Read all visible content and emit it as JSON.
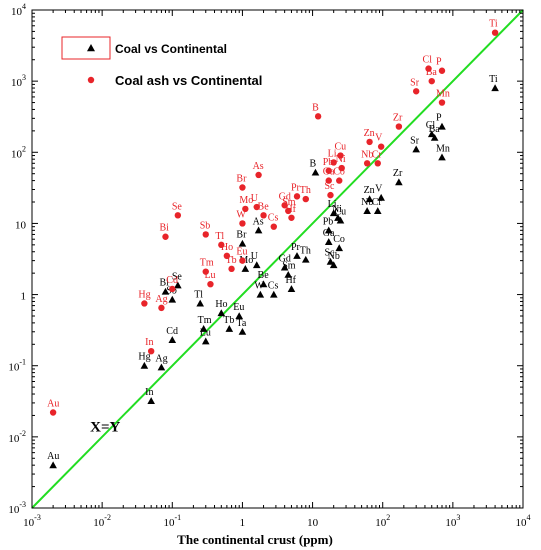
{
  "chart_data": {
    "type": "scatter",
    "xlabel": "The continental crust (ppm)",
    "ylabel": "",
    "x_scale": "log",
    "y_scale": "log",
    "xlim": [
      0.001,
      10000
    ],
    "ylim": [
      0.001,
      10000
    ],
    "x_ticks": [
      {
        "base": "10",
        "exp": "-3",
        "value": 0.001
      },
      {
        "base": "10",
        "exp": "-2",
        "value": 0.01
      },
      {
        "base": "10",
        "exp": "-1",
        "value": 0.1
      },
      {
        "base": "1",
        "exp": "",
        "value": 1
      },
      {
        "base": "10",
        "exp": "",
        "value": 10
      },
      {
        "base": "10",
        "exp": "2",
        "value": 100
      },
      {
        "base": "10",
        "exp": "3",
        "value": 1000
      },
      {
        "base": "10",
        "exp": "4",
        "value": 10000
      }
    ],
    "y_ticks": [
      {
        "base": "10",
        "exp": "-3",
        "value": 0.001
      },
      {
        "base": "10",
        "exp": "-2",
        "value": 0.01
      },
      {
        "base": "10",
        "exp": "-1",
        "value": 0.1
      },
      {
        "base": "1",
        "exp": "",
        "value": 1
      },
      {
        "base": "10",
        "exp": "",
        "value": 10
      },
      {
        "base": "10",
        "exp": "2",
        "value": 100
      },
      {
        "base": "10",
        "exp": "3",
        "value": 1000
      },
      {
        "base": "10",
        "exp": "4",
        "value": 10000
      }
    ],
    "grid": false,
    "legend_position": "top-left",
    "reference_line": {
      "label": "X=Y",
      "color": "#22dd22",
      "from": [
        0.001,
        0.001
      ],
      "to": [
        10000,
        10000
      ],
      "label_at": [
        0.01,
        0.014
      ]
    },
    "colors": {
      "coal": "#000000",
      "coal_ash": "#e8242a",
      "reference": "#22dd22"
    },
    "series": [
      {
        "name": "Coal vs Continental",
        "marker": "triangle",
        "points": [
          {
            "label": "Ti",
            "x": 4000,
            "y": 800
          },
          {
            "label": "P",
            "x": 700,
            "y": 230
          },
          {
            "label": "Cl",
            "x": 500,
            "y": 180
          },
          {
            "label": "Ba",
            "x": 550,
            "y": 160
          },
          {
            "label": "Sr",
            "x": 300,
            "y": 110
          },
          {
            "label": "Mn",
            "x": 700,
            "y": 85
          },
          {
            "label": "Zr",
            "x": 170,
            "y": 38
          },
          {
            "label": "Zn",
            "x": 65,
            "y": 22
          },
          {
            "label": "V",
            "x": 95,
            "y": 23
          },
          {
            "label": "Nb",
            "x": 60,
            "y": 15
          },
          {
            "label": "Cr",
            "x": 85,
            "y": 15
          },
          {
            "label": "B",
            "x": 11,
            "y": 52
          },
          {
            "label": "Li",
            "x": 20,
            "y": 14
          },
          {
            "label": "Ni",
            "x": 23,
            "y": 12
          },
          {
            "label": "Cu",
            "x": 25,
            "y": 11
          },
          {
            "label": "Pb",
            "x": 17,
            "y": 8
          },
          {
            "label": "Ga",
            "x": 17,
            "y": 5.5
          },
          {
            "label": "Co",
            "x": 24,
            "y": 4.5
          },
          {
            "label": "Sc",
            "x": 18,
            "y": 2.9
          },
          {
            "label": "Nb",
            "x": 20,
            "y": 2.6
          },
          {
            "label": "Pr",
            "x": 6,
            "y": 3.5
          },
          {
            "label": "Th",
            "x": 8,
            "y": 3.1
          },
          {
            "label": "Gd",
            "x": 4,
            "y": 2.4
          },
          {
            "label": "Sm",
            "x": 4.5,
            "y": 1.9
          },
          {
            "label": "Hf",
            "x": 5,
            "y": 1.2
          },
          {
            "label": "As",
            "x": 1.7,
            "y": 8
          },
          {
            "label": "Br",
            "x": 1,
            "y": 5.2
          },
          {
            "label": "U",
            "x": 1.6,
            "y": 2.6
          },
          {
            "label": "Mo",
            "x": 1.1,
            "y": 2.3
          },
          {
            "label": "Be",
            "x": 2,
            "y": 1.4
          },
          {
            "label": "W",
            "x": 1.8,
            "y": 1
          },
          {
            "label": "Cs",
            "x": 2.8,
            "y": 1
          },
          {
            "label": "Se",
            "x": 0.12,
            "y": 1.35
          },
          {
            "label": "Bi",
            "x": 0.08,
            "y": 1.1
          },
          {
            "label": "Sb",
            "x": 0.1,
            "y": 0.85
          },
          {
            "label": "Tl",
            "x": 0.25,
            "y": 0.75
          },
          {
            "label": "Ho",
            "x": 0.5,
            "y": 0.55
          },
          {
            "label": "Eu",
            "x": 0.9,
            "y": 0.5
          },
          {
            "label": "Tm",
            "x": 0.28,
            "y": 0.33
          },
          {
            "label": "Tb",
            "x": 0.65,
            "y": 0.33
          },
          {
            "label": "Ta",
            "x": 1,
            "y": 0.3
          },
          {
            "label": "Lu",
            "x": 0.3,
            "y": 0.22
          },
          {
            "label": "Cd",
            "x": 0.1,
            "y": 0.23
          },
          {
            "label": "Hg",
            "x": 0.04,
            "y": 0.1
          },
          {
            "label": "Ag",
            "x": 0.07,
            "y": 0.095
          },
          {
            "label": "In",
            "x": 0.05,
            "y": 0.032
          },
          {
            "label": "Au",
            "x": 0.002,
            "y": 0.004
          }
        ]
      },
      {
        "name": "Coal ash vs Continental",
        "marker": "circle",
        "points": [
          {
            "label": "Ti",
            "x": 4000,
            "y": 4800
          },
          {
            "label": "Cl",
            "x": 450,
            "y": 1500
          },
          {
            "label": "P",
            "x": 700,
            "y": 1400
          },
          {
            "label": "Ba",
            "x": 500,
            "y": 1000
          },
          {
            "label": "Sr",
            "x": 300,
            "y": 720
          },
          {
            "label": "Mn",
            "x": 700,
            "y": 500
          },
          {
            "label": "B",
            "x": 12,
            "y": 320
          },
          {
            "label": "Zr",
            "x": 170,
            "y": 230
          },
          {
            "label": "Zn",
            "x": 65,
            "y": 140
          },
          {
            "label": "V",
            "x": 95,
            "y": 120
          },
          {
            "label": "Cu",
            "x": 25,
            "y": 90
          },
          {
            "label": "Nb",
            "x": 60,
            "y": 70
          },
          {
            "label": "Cr",
            "x": 85,
            "y": 70
          },
          {
            "label": "Pb",
            "x": 17,
            "y": 55
          },
          {
            "label": "Li",
            "x": 20,
            "y": 72
          },
          {
            "label": "Ni",
            "x": 26,
            "y": 60
          },
          {
            "label": "Ga",
            "x": 17,
            "y": 40
          },
          {
            "label": "Co",
            "x": 24,
            "y": 40
          },
          {
            "label": "Sc",
            "x": 18,
            "y": 25
          },
          {
            "label": "As",
            "x": 1.7,
            "y": 48
          },
          {
            "label": "Br",
            "x": 1,
            "y": 32
          },
          {
            "label": "Pr",
            "x": 6,
            "y": 24
          },
          {
            "label": "Th",
            "x": 8,
            "y": 22
          },
          {
            "label": "Gd",
            "x": 4,
            "y": 18
          },
          {
            "label": "Sm",
            "x": 4.5,
            "y": 15
          },
          {
            "label": "Hf",
            "x": 5,
            "y": 12
          },
          {
            "label": "Mo",
            "x": 1.1,
            "y": 16
          },
          {
            "label": "U",
            "x": 1.6,
            "y": 17
          },
          {
            "label": "W",
            "x": 1,
            "y": 10
          },
          {
            "label": "Be",
            "x": 2,
            "y": 13
          },
          {
            "label": "Cs",
            "x": 2.8,
            "y": 9
          },
          {
            "label": "Se",
            "x": 0.12,
            "y": 13
          },
          {
            "label": "Bi",
            "x": 0.08,
            "y": 6.5
          },
          {
            "label": "Sb",
            "x": 0.3,
            "y": 7
          },
          {
            "label": "Tl",
            "x": 0.5,
            "y": 5
          },
          {
            "label": "Ho",
            "x": 0.6,
            "y": 3.5
          },
          {
            "label": "Eu",
            "x": 1,
            "y": 3
          },
          {
            "label": "Tm",
            "x": 0.3,
            "y": 2.1
          },
          {
            "label": "Tb",
            "x": 0.7,
            "y": 2.3
          },
          {
            "label": "Lu",
            "x": 0.35,
            "y": 1.4
          },
          {
            "label": "Cd",
            "x": 0.1,
            "y": 1.2
          },
          {
            "label": "Hg",
            "x": 0.04,
            "y": 0.75
          },
          {
            "label": "Ag",
            "x": 0.07,
            "y": 0.65
          },
          {
            "label": "In",
            "x": 0.05,
            "y": 0.16
          },
          {
            "label": "Au",
            "x": 0.002,
            "y": 0.022
          }
        ]
      }
    ]
  }
}
